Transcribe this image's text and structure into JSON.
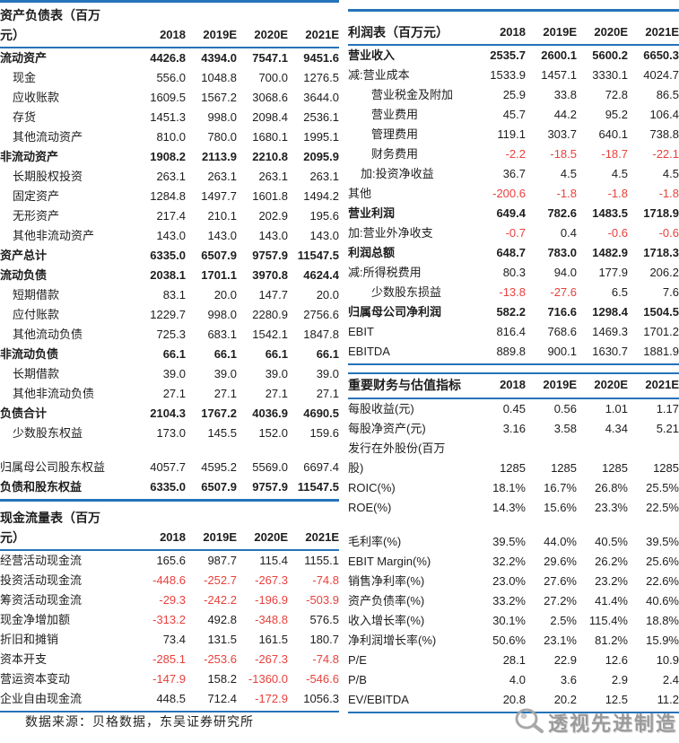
{
  "colors": {
    "accent_blue": "#2573B9",
    "negative_red": "#E8413C",
    "watermark_gray": "#9B9B9B"
  },
  "footer": {
    "source_note": "数据来源：贝格数据，东吴证券研究所",
    "watermark_text": "透视先进制造"
  },
  "tables": {
    "balance_sheet": {
      "title_line1": "资产负债表（百万",
      "title_line2": "元）",
      "columns": [
        "2018",
        "2019E",
        "2020E",
        "2021E"
      ],
      "rows": [
        {
          "label": "流动资产",
          "bold": true,
          "indent": 0,
          "values": [
            "4426.8",
            "4394.0",
            "7547.1",
            "9451.6"
          ]
        },
        {
          "label": "现金",
          "indent": 1,
          "values": [
            "556.0",
            "1048.8",
            "700.0",
            "1276.5"
          ]
        },
        {
          "label": "应收账款",
          "indent": 1,
          "values": [
            "1609.5",
            "1567.2",
            "3068.6",
            "3644.0"
          ]
        },
        {
          "label": "存货",
          "indent": 1,
          "values": [
            "1451.3",
            "998.0",
            "2098.4",
            "2536.1"
          ]
        },
        {
          "label": "其他流动资产",
          "indent": 1,
          "values": [
            "810.0",
            "780.0",
            "1680.1",
            "1995.1"
          ]
        },
        {
          "label": "非流动资产",
          "bold": true,
          "indent": 0,
          "values": [
            "1908.2",
            "2113.9",
            "2210.8",
            "2095.9"
          ]
        },
        {
          "label": "长期股权投资",
          "indent": 1,
          "values": [
            "263.1",
            "263.1",
            "263.1",
            "263.1"
          ]
        },
        {
          "label": "固定资产",
          "indent": 1,
          "values": [
            "1284.8",
            "1497.7",
            "1601.8",
            "1494.2"
          ]
        },
        {
          "label": "无形资产",
          "indent": 1,
          "values": [
            "217.4",
            "210.1",
            "202.9",
            "195.6"
          ]
        },
        {
          "label": "其他非流动资产",
          "indent": 1,
          "values": [
            "143.0",
            "143.0",
            "143.0",
            "143.0"
          ]
        },
        {
          "label": "资产总计",
          "bold": true,
          "indent": 0,
          "values": [
            "6335.0",
            "6507.9",
            "9757.9",
            "11547.5"
          ]
        },
        {
          "label": "流动负债",
          "bold": true,
          "indent": 0,
          "values": [
            "2038.1",
            "1701.1",
            "3970.8",
            "4624.4"
          ]
        },
        {
          "label": "短期借款",
          "indent": 1,
          "values": [
            "83.1",
            "20.0",
            "147.7",
            "20.0"
          ]
        },
        {
          "label": "应付账款",
          "indent": 1,
          "values": [
            "1229.7",
            "998.0",
            "2280.9",
            "2756.6"
          ]
        },
        {
          "label": "其他流动负债",
          "indent": 1,
          "values": [
            "725.3",
            "683.1",
            "1542.1",
            "1847.8"
          ]
        },
        {
          "label": "非流动负债",
          "bold": true,
          "indent": 0,
          "values": [
            "66.1",
            "66.1",
            "66.1",
            "66.1"
          ]
        },
        {
          "label": "长期借款",
          "indent": 1,
          "values": [
            "39.0",
            "39.0",
            "39.0",
            "39.0"
          ]
        },
        {
          "label": "其他非流动负债",
          "indent": 1,
          "values": [
            "27.1",
            "27.1",
            "27.1",
            "27.1"
          ]
        },
        {
          "label": "负债合计",
          "bold": true,
          "indent": 0,
          "values": [
            "2104.3",
            "1767.2",
            "4036.9",
            "4690.5"
          ]
        },
        {
          "label": "少数股东权益",
          "indent": 1,
          "values": [
            "173.0",
            "145.5",
            "152.0",
            "159.6"
          ]
        },
        {
          "blank": true
        },
        {
          "label": "归属母公司股东权益",
          "indent": 0,
          "values": [
            "4057.7",
            "4595.2",
            "5569.0",
            "6697.4"
          ]
        },
        {
          "label": "负债和股东权益",
          "bold": true,
          "indent": 0,
          "values": [
            "6335.0",
            "6507.9",
            "9757.9",
            "11547.5"
          ]
        }
      ]
    },
    "cash_flow": {
      "title_line1": "现金流量表（百万",
      "title_line2": "元）",
      "columns": [
        "2018",
        "2019E",
        "2020E",
        "2021E"
      ],
      "rows": [
        {
          "label": "经营活动现金流",
          "indent": 0,
          "values": [
            "165.6",
            "987.7",
            "115.4",
            "1155.1"
          ]
        },
        {
          "label": "投资活动现金流",
          "indent": 0,
          "values": [
            "-448.6",
            "-252.7",
            "-267.3",
            "-74.8"
          ]
        },
        {
          "label": "筹资活动现金流",
          "indent": 0,
          "values": [
            "-29.3",
            "-242.2",
            "-196.9",
            "-503.9"
          ]
        },
        {
          "label": "现金净增加额",
          "indent": 0,
          "values": [
            "-313.2",
            "492.8",
            "-348.8",
            "576.5"
          ]
        },
        {
          "label": "折旧和摊销",
          "indent": 0,
          "values": [
            "73.4",
            "131.5",
            "161.5",
            "180.7"
          ]
        },
        {
          "label": "资本开支",
          "indent": 0,
          "values": [
            "-285.1",
            "-253.6",
            "-267.3",
            "-74.8"
          ]
        },
        {
          "label": "营运资本变动",
          "indent": 0,
          "values": [
            "-147.9",
            "158.2",
            "-1360.0",
            "-546.6"
          ]
        },
        {
          "label": "企业自由现金流",
          "indent": 0,
          "values": [
            "448.5",
            "712.4",
            "-172.9",
            "1056.3"
          ]
        }
      ]
    },
    "income_statement": {
      "title_line1": "",
      "title_line2": "利润表（百万元）",
      "columns": [
        "2018",
        "2019E",
        "2020E",
        "2021E"
      ],
      "rows": [
        {
          "label": "营业收入",
          "bold": true,
          "indent": 0,
          "values": [
            "2535.7",
            "2600.1",
            "5600.2",
            "6650.3"
          ]
        },
        {
          "label": "减:营业成本",
          "indent": 0,
          "values": [
            "1533.9",
            "1457.1",
            "3330.1",
            "4024.7"
          ]
        },
        {
          "label": "营业税金及附加",
          "indent": 2,
          "values": [
            "25.9",
            "33.8",
            "72.8",
            "86.5"
          ]
        },
        {
          "label": "营业费用",
          "indent": 2,
          "values": [
            "45.7",
            "44.2",
            "95.2",
            "106.4"
          ]
        },
        {
          "label": "管理费用",
          "indent": 2,
          "values": [
            "119.1",
            "303.7",
            "640.1",
            "738.8"
          ]
        },
        {
          "label": "财务费用",
          "indent": 2,
          "values": [
            "-2.2",
            "-18.5",
            "-18.7",
            "-22.1"
          ]
        },
        {
          "label": "加:投资净收益",
          "indent": 1,
          "values": [
            "36.7",
            "4.5",
            "4.5",
            "4.5"
          ]
        },
        {
          "label": "其他",
          "indent": 0,
          "values": [
            "-200.6",
            "-1.8",
            "-1.8",
            "-1.8"
          ]
        },
        {
          "label": "营业利润",
          "bold": true,
          "indent": 0,
          "values": [
            "649.4",
            "782.6",
            "1483.5",
            "1718.9"
          ]
        },
        {
          "label": "加:营业外净收支",
          "indent": 0,
          "values": [
            "-0.7",
            "0.4",
            "-0.6",
            "-0.6"
          ]
        },
        {
          "label": "利润总额",
          "bold": true,
          "indent": 0,
          "values": [
            "648.7",
            "783.0",
            "1482.9",
            "1718.3"
          ]
        },
        {
          "label": "减:所得税费用",
          "indent": 0,
          "values": [
            "80.3",
            "94.0",
            "177.9",
            "206.2"
          ]
        },
        {
          "label": "少数股东损益",
          "indent": 2,
          "values": [
            "-13.8",
            "-27.6",
            "6.5",
            "7.6"
          ]
        },
        {
          "label": "归属母公司净利润",
          "bold": true,
          "indent": 0,
          "values": [
            "582.2",
            "716.6",
            "1298.4",
            "1504.5"
          ]
        },
        {
          "label": "EBIT",
          "indent": 0,
          "values": [
            "816.4",
            "768.6",
            "1469.3",
            "1701.2"
          ]
        },
        {
          "label": "EBITDA",
          "indent": 0,
          "values": [
            "889.8",
            "900.1",
            "1630.7",
            "1881.9"
          ]
        }
      ]
    },
    "metrics": {
      "title_line1": "",
      "title_line2": "重要财务与估值指标",
      "columns": [
        "2018",
        "2019E",
        "2020E",
        "2021E"
      ],
      "rows": [
        {
          "label": "每股收益(元)",
          "indent": 0,
          "values": [
            "0.45",
            "0.56",
            "1.01",
            "1.17"
          ]
        },
        {
          "label": "每股净资产(元)",
          "indent": 0,
          "values": [
            "3.16",
            "3.58",
            "4.34",
            "5.21"
          ]
        },
        {
          "label": "发行在外股份(百万",
          "indent": 0,
          "values": [
            "",
            "",
            "",
            ""
          ]
        },
        {
          "label": "股)",
          "indent": 0,
          "values": [
            "1285",
            "1285",
            "1285",
            "1285"
          ]
        },
        {
          "label": "ROIC(%)",
          "indent": 0,
          "values": [
            "18.1%",
            "16.7%",
            "26.8%",
            "25.5%"
          ]
        },
        {
          "label": "ROE(%)",
          "indent": 0,
          "values": [
            "14.3%",
            "15.6%",
            "23.3%",
            "22.5%"
          ]
        },
        {
          "blank": true
        },
        {
          "label": "毛利率(%)",
          "indent": 0,
          "values": [
            "39.5%",
            "44.0%",
            "40.5%",
            "39.5%"
          ]
        },
        {
          "label": "EBIT Margin(%)",
          "indent": 0,
          "values": [
            "32.2%",
            "29.6%",
            "26.2%",
            "25.6%"
          ]
        },
        {
          "label": "销售净利率(%)",
          "indent": 0,
          "values": [
            "23.0%",
            "27.6%",
            "23.2%",
            "22.6%"
          ]
        },
        {
          "label": "资产负债率(%)",
          "indent": 0,
          "values": [
            "33.2%",
            "27.2%",
            "41.4%",
            "40.6%"
          ]
        },
        {
          "label": "收入增长率(%)",
          "indent": 0,
          "values": [
            "30.1%",
            "2.5%",
            "115.4%",
            "18.8%"
          ]
        },
        {
          "label": "净利润增长率(%)",
          "indent": 0,
          "values": [
            "50.6%",
            "23.1%",
            "81.2%",
            "15.9%"
          ]
        },
        {
          "label": "P/E",
          "indent": 0,
          "values": [
            "28.1",
            "22.9",
            "12.6",
            "10.9"
          ]
        },
        {
          "label": "P/B",
          "indent": 0,
          "values": [
            "4.0",
            "3.6",
            "2.9",
            "2.4"
          ]
        },
        {
          "label": "EV/EBITDA",
          "indent": 0,
          "values": [
            "20.8",
            "20.2",
            "12.5",
            "11.2"
          ]
        }
      ]
    }
  }
}
